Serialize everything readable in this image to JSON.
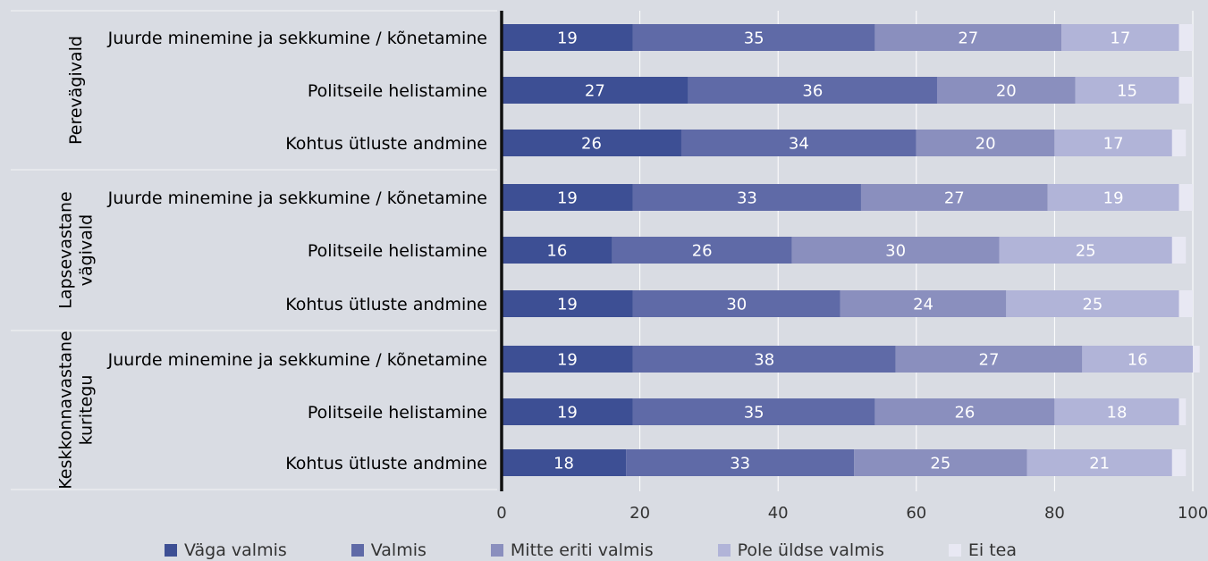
{
  "chart_data": {
    "type": "bar",
    "orientation": "horizontal",
    "stacked": true,
    "groups": [
      {
        "name": "Perevägivald",
        "name_lines": [
          "Perevägivald"
        ]
      },
      {
        "name": "Lapsevastane vägivald",
        "name_lines": [
          "Lapsevastane",
          "vägivald"
        ]
      },
      {
        "name": "Keskkonnavastane kuritegu",
        "name_lines": [
          "Keskkonnavastane",
          "kuritegu"
        ]
      }
    ],
    "categories": [
      "Juurde minemine ja sekkumine / kõnetamine",
      "Politseile helistamine",
      "Kohtus ütluste andmine",
      "Juurde minemine ja sekkumine / kõnetamine",
      "Politseile helistamine",
      "Kohtus ütluste andmine",
      "Juurde minemine ja sekkumine / kõnetamine",
      "Politseile helistamine",
      "Kohtus ütluste andmine"
    ],
    "series": [
      {
        "name": "Väga valmis",
        "color": "#3d4f94",
        "values": [
          19,
          27,
          26,
          19,
          16,
          19,
          19,
          19,
          18
        ]
      },
      {
        "name": "Valmis",
        "color": "#5f6aa7",
        "values": [
          35,
          36,
          34,
          33,
          26,
          30,
          38,
          35,
          33
        ]
      },
      {
        "name": "Mitte eriti valmis",
        "color": "#8a8fbe",
        "values": [
          27,
          20,
          20,
          27,
          30,
          24,
          27,
          26,
          25
        ]
      },
      {
        "name": "Pole üldse valmis",
        "color": "#b1b4d8",
        "values": [
          17,
          15,
          17,
          19,
          25,
          25,
          16,
          18,
          21
        ]
      },
      {
        "name": "Ei tea",
        "color": "#e8e8f3",
        "values": [
          2,
          2,
          2,
          2,
          2,
          2,
          1,
          1,
          2
        ]
      }
    ],
    "xlim": [
      0,
      100
    ],
    "xticks": [
      0,
      20,
      40,
      60,
      80,
      100
    ],
    "grid": true,
    "legend_position": "bottom"
  }
}
